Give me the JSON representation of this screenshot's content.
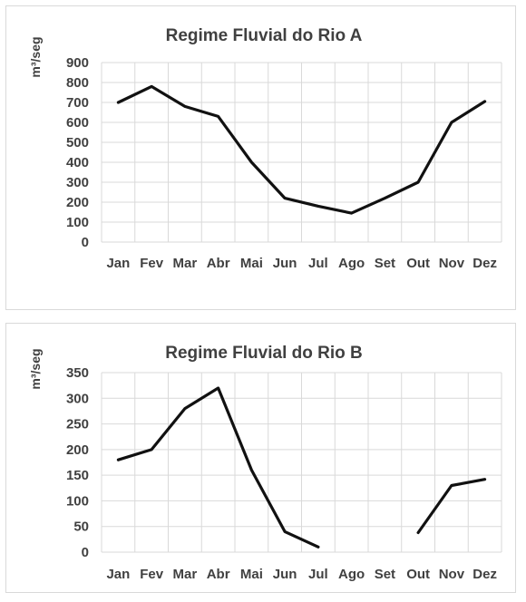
{
  "chart_data": [
    {
      "type": "line",
      "title": "Regime Fluvial do Rio A",
      "ylabel": "m³/seg",
      "xlabel": "",
      "categories": [
        "Jan",
        "Fev",
        "Mar",
        "Abr",
        "Mai",
        "Jun",
        "Jul",
        "Ago",
        "Set",
        "Out",
        "Nov",
        "Dez"
      ],
      "values": [
        700,
        780,
        680,
        630,
        400,
        220,
        180,
        145,
        220,
        300,
        600,
        705
      ],
      "ylim": [
        0,
        900
      ],
      "yticks": [
        0,
        100,
        200,
        300,
        400,
        500,
        600,
        700,
        800,
        900
      ],
      "grid": true,
      "legend": "none",
      "line_color": "#111111"
    },
    {
      "type": "line",
      "title": "Regime Fluvial do Rio B",
      "ylabel": "m³/seg",
      "xlabel": "",
      "categories": [
        "Jan",
        "Fev",
        "Mar",
        "Abr",
        "Mai",
        "Jun",
        "Jul",
        "Ago",
        "Set",
        "Out",
        "Nov",
        "Dez"
      ],
      "values": [
        180,
        200,
        280,
        320,
        160,
        40,
        10,
        null,
        null,
        38,
        130,
        142
      ],
      "ylim": [
        0,
        350
      ],
      "yticks": [
        0,
        50,
        100,
        150,
        200,
        250,
        300,
        350
      ],
      "grid": true,
      "legend": "none",
      "line_color": "#111111"
    }
  ]
}
